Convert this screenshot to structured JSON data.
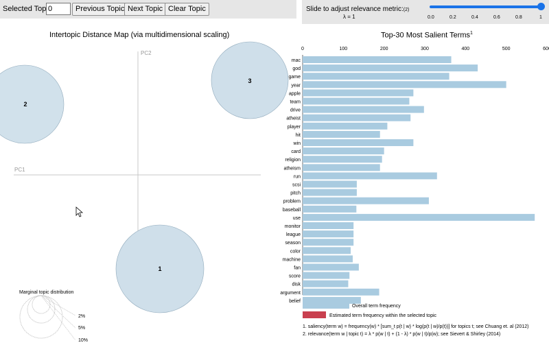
{
  "controls": {
    "selected_topic_label": "Selected Topic:",
    "selected_topic_value": "0",
    "prev_label": "Previous Topic",
    "next_label": "Next Topic",
    "clear_label": "Clear Topic"
  },
  "relevance": {
    "label": "Slide to adjust relevance metric:",
    "footnote": "(2)",
    "lambda_text": "λ = 1",
    "value": 1,
    "ticks": [
      "0.0",
      "0.2",
      "0.4",
      "0.6",
      "0.8",
      "1"
    ],
    "accent": "#1a73e8"
  },
  "left_panel": {
    "title": "Intertopic Distance Map (via multidimensional scaling)",
    "pc1": "PC1",
    "pc2": "PC2",
    "topics": [
      {
        "label": "2"
      },
      {
        "label": "3"
      },
      {
        "label": "1"
      }
    ],
    "marginal": {
      "title": "Marginal topic distribution",
      "labels": [
        "2%",
        "5%",
        "10%"
      ]
    },
    "circle_color": "#cfdfea"
  },
  "chart_data": {
    "type": "bar",
    "title": "Top-30 Most Salient Terms",
    "title_sup": "1",
    "categories": [
      "mac",
      "god",
      "game",
      "year",
      "apple",
      "team",
      "drive",
      "atheist",
      "player",
      "hit",
      "win",
      "card",
      "religion",
      "atheism",
      "run",
      "scsi",
      "pitch",
      "problem",
      "baseball",
      "use",
      "monitor",
      "league",
      "season",
      "color",
      "machine",
      "fan",
      "score",
      "disk",
      "argument",
      "belief"
    ],
    "series": [
      {
        "name": "Overall term frequency",
        "color": "#a9cbe0",
        "values": [
          365,
          430,
          360,
          500,
          272,
          262,
          298,
          265,
          208,
          190,
          272,
          200,
          195,
          190,
          330,
          133,
          133,
          310,
          132,
          570,
          125,
          125,
          125,
          118,
          123,
          138,
          115,
          112,
          188,
          143
        ]
      }
    ],
    "xlim": [
      0,
      600
    ],
    "xticks": [
      "0",
      "100",
      "200",
      "300",
      "400",
      "500",
      "600"
    ],
    "legend": [
      {
        "label": "Overall term frequency",
        "color": "#a9cbe0"
      },
      {
        "label": "Estimated term frequency within the selected topic",
        "color": "#c9404f"
      }
    ],
    "notes": [
      "1. saliency(term w) = frequency(w) * [sum_t p(t | w) * log(p(t | w)/p(t))] for topics t; see Chuang et. al (2012)",
      "2. relevance(term w | topic t) = λ * p(w | t) + (1 - λ) * p(w | t)/p(w); see Sievert & Shirley (2014)"
    ]
  }
}
